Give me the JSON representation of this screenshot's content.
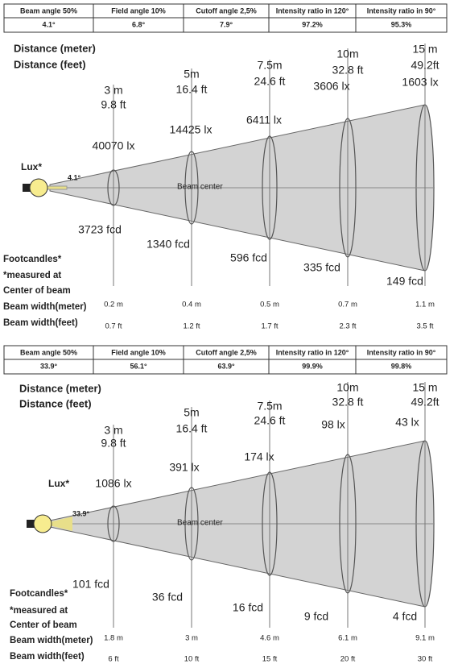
{
  "sections": [
    {
      "table": {
        "headers": [
          "Beam angle 50%",
          "Field angle 10%",
          "Cutoff angle 2,5%",
          "Intensity ratio in 120°",
          "Intensity ratio in 90°"
        ],
        "values": [
          "4.1°",
          "6.8°",
          "7.9°",
          "97.2%",
          "95.3%"
        ]
      },
      "labels": {
        "distance_meter": "Distance (meter)",
        "distance_feet": "Distance (feet)",
        "lux": "Lux*",
        "footcandles": "Footcandles*",
        "measured_at": "*measured at",
        "center_of_beam": "Center of beam",
        "beam_width_meter": "Beam width(meter)",
        "beam_width_feet": "Beam width(feet)",
        "beam_center": "Beam center",
        "angle": "4.1°"
      },
      "points": [
        {
          "meter": "3 m",
          "feet": "9.8 ft",
          "lux": "40070 lx",
          "fcd": "3723 fcd",
          "width_m": "0.2 m",
          "width_ft": "0.7 ft"
        },
        {
          "meter": "5m",
          "feet": "16.4 ft",
          "lux": "14425 lx",
          "fcd": "1340 fcd",
          "width_m": "0.4 m",
          "width_ft": "1.2 ft"
        },
        {
          "meter": "7.5m",
          "feet": "24.6 ft",
          "lux": "6411 lx",
          "fcd": "596 fcd",
          "width_m": "0.5 m",
          "width_ft": "1.7 ft"
        },
        {
          "meter": "10m",
          "feet": "32.8 ft",
          "lux": "3606 lx",
          "fcd": "335 fcd",
          "width_m": "0.7 m",
          "width_ft": "2.3 ft"
        },
        {
          "meter": "15 m",
          "feet": "49.2ft",
          "lux": "1603 lx",
          "fcd": "149 fcd",
          "width_m": "1.1 m",
          "width_ft": "3.5 ft"
        }
      ]
    },
    {
      "table": {
        "headers": [
          "Beam angle 50%",
          "Field angle 10%",
          "Cutoff angle 2,5%",
          "Intensity ratio in 120°",
          "Intensity ratio in 90°"
        ],
        "values": [
          "33.9°",
          "56.1°",
          "63.9°",
          "99.9%",
          "99.8%"
        ]
      },
      "labels": {
        "distance_meter": "Distance (meter)",
        "distance_feet": "Distance (feet)",
        "lux": "Lux*",
        "footcandles": "Footcandles*",
        "measured_at": "*measured at",
        "center_of_beam": "Center of beam",
        "beam_width_meter": "Beam width(meter)",
        "beam_width_feet": "Beam width(feet)",
        "beam_center": "Beam center",
        "angle": "33.9°"
      },
      "points": [
        {
          "meter": "3 m",
          "feet": "9.8 ft",
          "lux": "1086 lx",
          "fcd": "101 fcd",
          "width_m": "1.8 m",
          "width_ft": "6 ft"
        },
        {
          "meter": "5m",
          "feet": "16.4 ft",
          "lux": "391 lx",
          "fcd": "36 fcd",
          "width_m": "3 m",
          "width_ft": "10 ft"
        },
        {
          "meter": "7.5m",
          "feet": "24.6 ft",
          "lux": "174 lx",
          "fcd": "16 fcd",
          "width_m": "4.6 m",
          "width_ft": "15 ft"
        },
        {
          "meter": "10m",
          "feet": "32.8 ft",
          "lux": "98 lx",
          "fcd": "9 fcd",
          "width_m": "6.1 m",
          "width_ft": "20 ft"
        },
        {
          "meter": "15 m",
          "feet": "49.2ft",
          "lux": "43 lx",
          "fcd": "4 fcd",
          "width_m": "9.1 m",
          "width_ft": "30 ft"
        }
      ]
    }
  ]
}
